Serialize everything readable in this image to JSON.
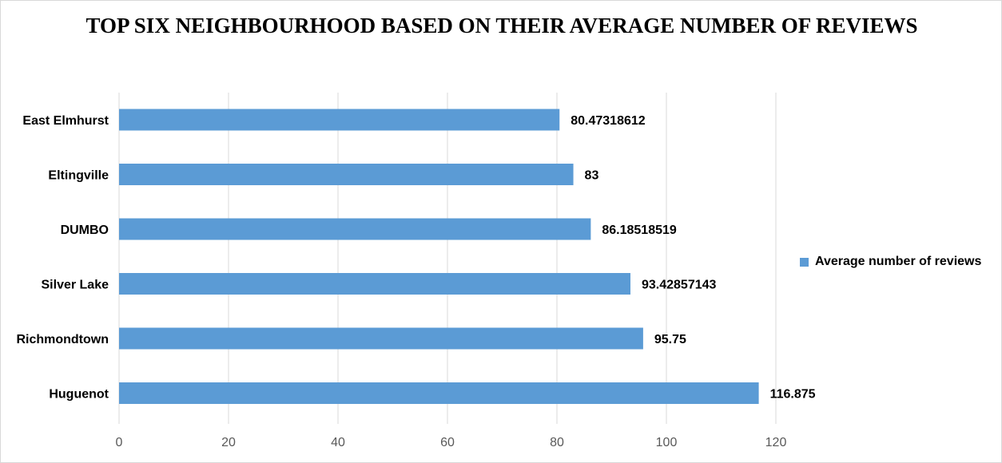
{
  "chart_data": {
    "type": "bar",
    "orientation": "horizontal",
    "title": "TOP SIX NEIGHBOURHOOD BASED ON THEIR AVERAGE NUMBER OF REVIEWS",
    "categories": [
      "East Elmhurst",
      "Eltingville",
      "DUMBO",
      "Silver Lake",
      "Richmondtown",
      "Huguenot"
    ],
    "series": [
      {
        "name": "Average number of reviews",
        "values": [
          80.47318612,
          83,
          86.18518519,
          93.42857143,
          95.75,
          116.875
        ],
        "data_labels": [
          "80.47318612",
          "83",
          "86.18518519",
          "93.42857143",
          "95.75",
          "116.875"
        ]
      }
    ],
    "xlim": [
      0,
      120
    ],
    "x_ticks": [
      "0",
      "20",
      "40",
      "60",
      "80",
      "100",
      "120"
    ],
    "grid": "vertical",
    "legend_position": "right",
    "colors": {
      "bar": "#5b9bd5",
      "grid": "#d9d9d9",
      "tick_text": "#595959"
    }
  }
}
